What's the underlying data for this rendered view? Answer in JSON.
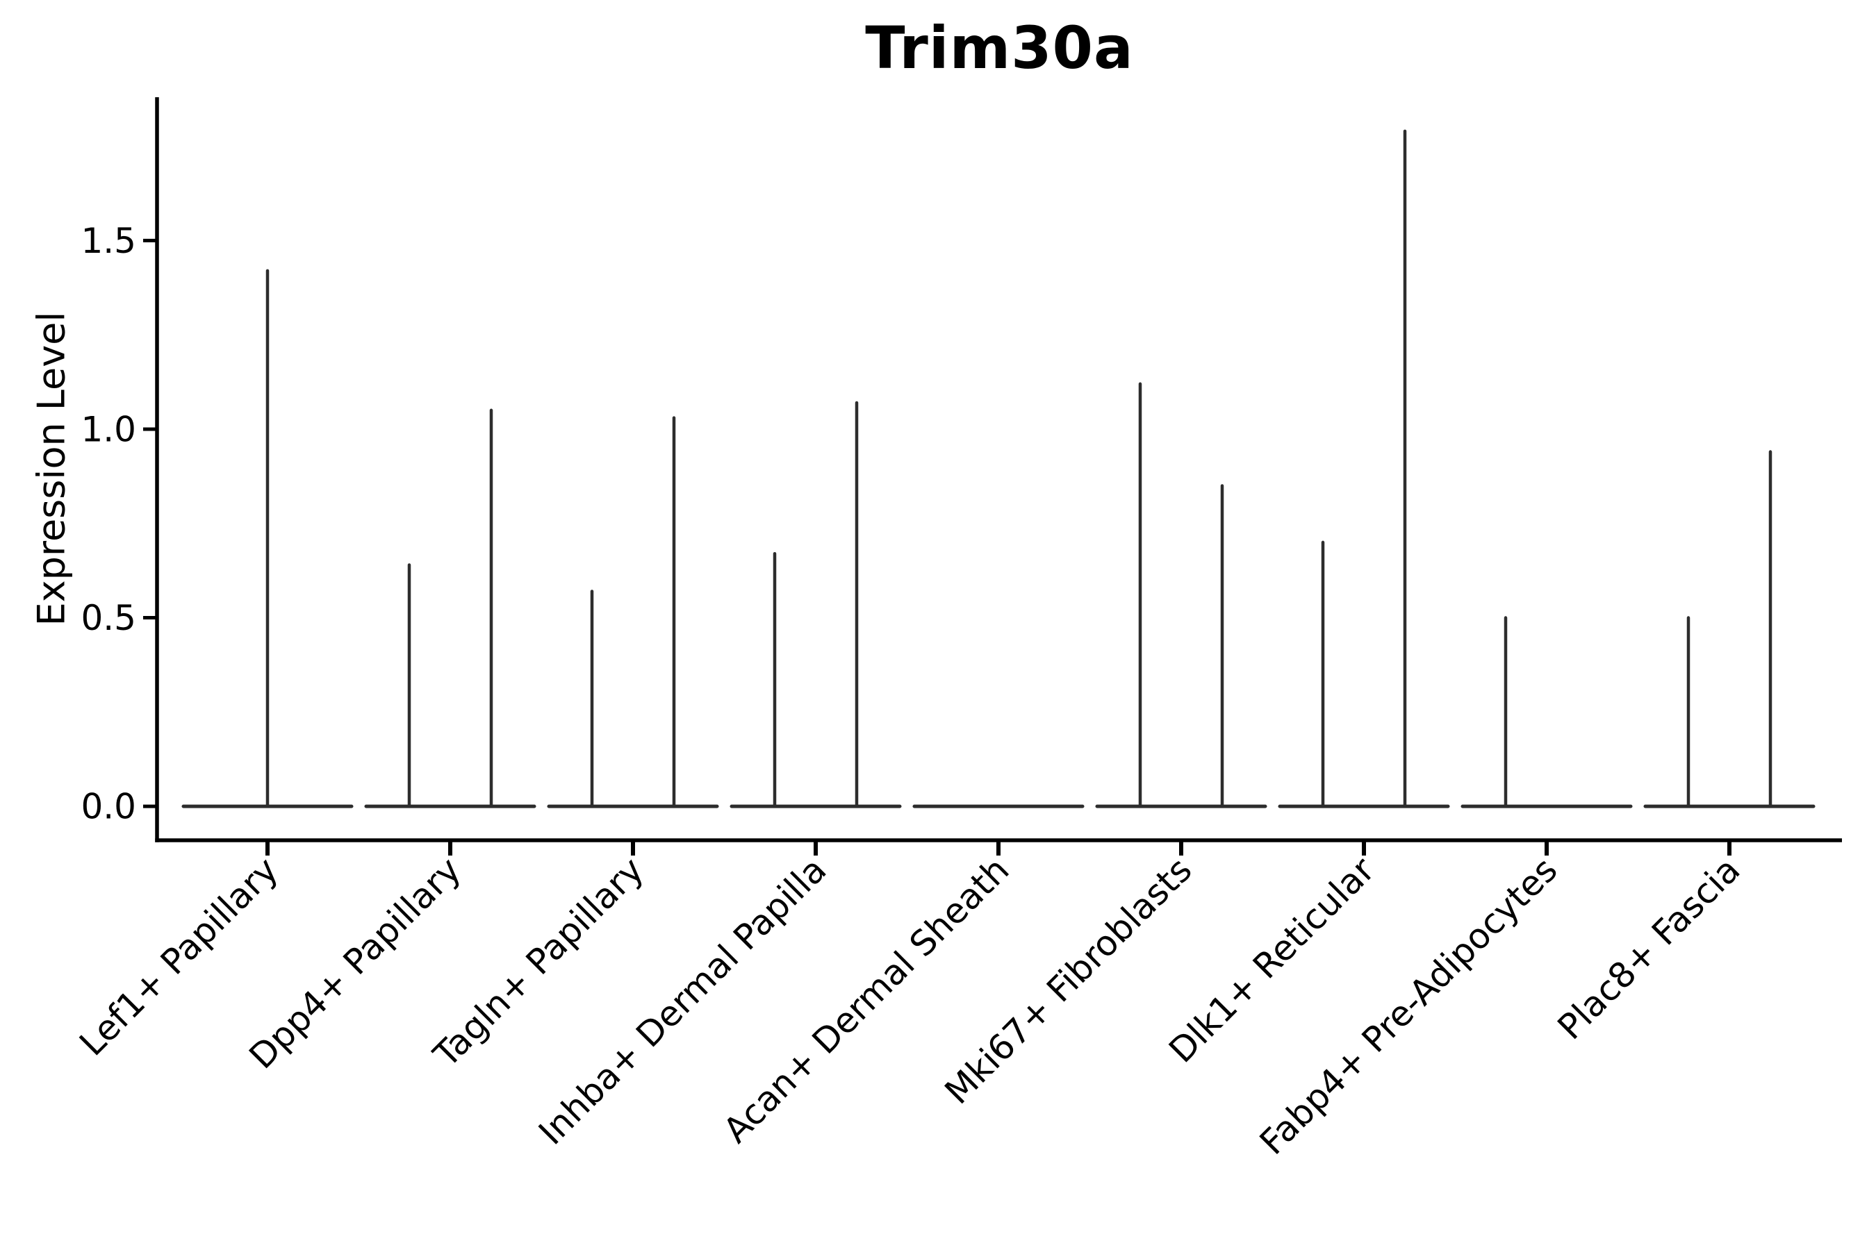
{
  "chart_data": {
    "type": "violin",
    "title": "Trim30a",
    "ylabel": "Expression Level",
    "xlabel": "",
    "yticks": [
      "0.0",
      "0.5",
      "1.0",
      "1.5"
    ],
    "ytick_values": [
      0.0,
      0.5,
      1.0,
      1.5
    ],
    "ylim": [
      -0.09,
      1.88
    ],
    "grid": false,
    "legend_position": "none",
    "violin_color": "#2d2d2d",
    "axis_color": "#000000",
    "background_color": "#ffffff",
    "categories": [
      "Lef1+ Papillary",
      "Dpp4+ Papillary",
      "Tagln+ Papillary",
      "Inhba+ Dermal Papilla",
      "Acan+ Dermal Sheath",
      "Mki67+ Fibroblasts",
      "Dlk1+ Reticular",
      "Fabp4+ Pre-Adipocytes",
      "Plac8+ Fascia"
    ],
    "violins": [
      {
        "category": "Lef1+ Papillary",
        "base_at_zero": true,
        "spikes": [
          {
            "pos": "center",
            "max": 1.42
          }
        ]
      },
      {
        "category": "Dpp4+ Papillary",
        "base_at_zero": true,
        "spikes": [
          {
            "pos": "left",
            "max": 0.64
          },
          {
            "pos": "right",
            "max": 1.05
          }
        ]
      },
      {
        "category": "Tagln+ Papillary",
        "base_at_zero": true,
        "spikes": [
          {
            "pos": "left",
            "max": 0.57
          },
          {
            "pos": "right",
            "max": 1.03
          }
        ]
      },
      {
        "category": "Inhba+ Dermal Papilla",
        "base_at_zero": true,
        "spikes": [
          {
            "pos": "left",
            "max": 0.67
          },
          {
            "pos": "right",
            "max": 1.07
          }
        ]
      },
      {
        "category": "Acan+ Dermal Sheath",
        "base_at_zero": true,
        "spikes": []
      },
      {
        "category": "Mki67+ Fibroblasts",
        "base_at_zero": true,
        "spikes": [
          {
            "pos": "left",
            "max": 1.12
          },
          {
            "pos": "right",
            "max": 0.85
          }
        ]
      },
      {
        "category": "Dlk1+ Reticular",
        "base_at_zero": true,
        "spikes": [
          {
            "pos": "left",
            "max": 0.7
          },
          {
            "pos": "right",
            "max": 1.79
          }
        ]
      },
      {
        "category": "Fabp4+ Pre-Adipocytes",
        "base_at_zero": true,
        "spikes": [
          {
            "pos": "left",
            "max": 0.5
          }
        ]
      },
      {
        "category": "Plac8+ Fascia",
        "base_at_zero": true,
        "spikes": [
          {
            "pos": "left",
            "max": 0.5
          },
          {
            "pos": "right",
            "max": 0.94
          }
        ]
      }
    ]
  }
}
